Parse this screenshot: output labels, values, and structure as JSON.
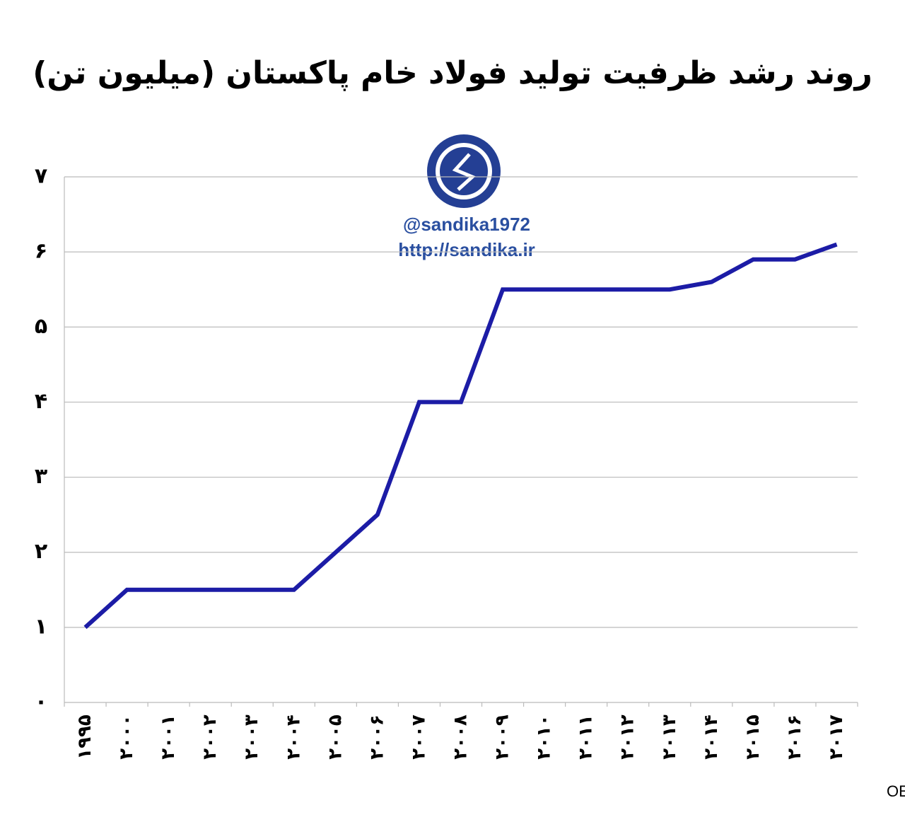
{
  "chart_data": {
    "type": "line",
    "title": "روند رشد ظرفیت تولید فولاد خام پاکستان (میلیون تن)",
    "watermark": [
      "@sandika1972",
      "http://sandika.ir"
    ],
    "source": "منبع: OECD",
    "categories": [
      "۱۹۹۵",
      "۲۰۰۰",
      "۲۰۰۱",
      "۲۰۰۲",
      "۲۰۰۳",
      "۲۰۰۴",
      "۲۰۰۵",
      "۲۰۰۶",
      "۲۰۰۷",
      "۲۰۰۸",
      "۲۰۰۹",
      "۲۰۱۰",
      "۲۰۱۱",
      "۲۰۱۲",
      "۲۰۱۳",
      "۲۰۱۴",
      "۲۰۱۵",
      "۲۰۱۶",
      "۲۰۱۷"
    ],
    "values": [
      1,
      1.5,
      1.5,
      1.5,
      1.5,
      1.5,
      2,
      2.5,
      4,
      4,
      5.5,
      5.5,
      5.5,
      5.5,
      5.5,
      5.6,
      5.9,
      5.9,
      6.1
    ],
    "color": "#1c1ca6",
    "ylim": [
      0,
      7
    ],
    "yticks": [
      {
        "value": 0,
        "label": "۰"
      },
      {
        "value": 1,
        "label": "۱"
      },
      {
        "value": 2,
        "label": "۲"
      },
      {
        "value": 3,
        "label": "۳"
      },
      {
        "value": 4,
        "label": "۴"
      },
      {
        "value": 5,
        "label": "۵"
      },
      {
        "value": 6,
        "label": "۶"
      },
      {
        "value": 7,
        "label": "۷"
      }
    ],
    "grid": true
  }
}
